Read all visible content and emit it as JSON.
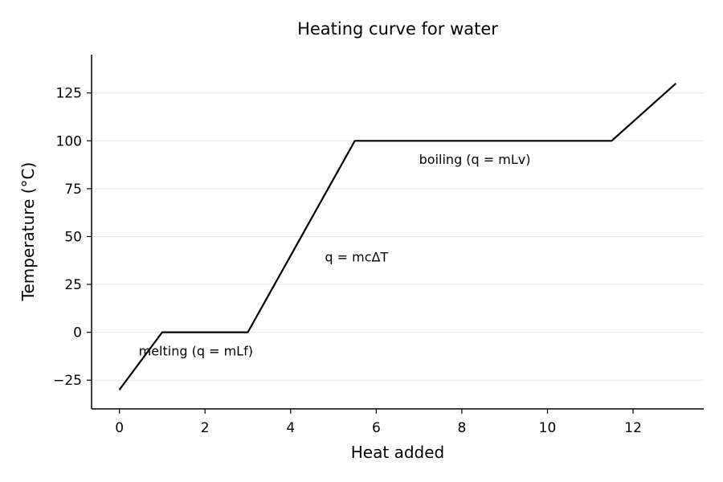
{
  "chart_data": {
    "type": "line",
    "title": "Heating curve for water",
    "xlabel": "Heat added",
    "ylabel": "Temperature (°C)",
    "xlim": [
      -0.65,
      13.65
    ],
    "ylim": [
      -40,
      145
    ],
    "xticks": [
      0,
      2,
      4,
      6,
      8,
      10,
      12
    ],
    "xtick_labels": [
      "0",
      "2",
      "4",
      "6",
      "8",
      "10",
      "12"
    ],
    "yticks": [
      -25,
      0,
      25,
      50,
      75,
      100,
      125
    ],
    "ytick_labels": [
      "−25",
      "0",
      "25",
      "50",
      "75",
      "100",
      "125"
    ],
    "grid": "horizontal",
    "line_color": "#000000",
    "series": [
      {
        "x": [
          0,
          1,
          3,
          5.5,
          11.5,
          13
        ],
        "y": [
          -30,
          0,
          0,
          100,
          100,
          130
        ]
      }
    ],
    "annotations": [
      {
        "text": "melting (q = mLf)",
        "x": 0.45,
        "y": -12
      },
      {
        "text": "q = mcΔT",
        "x": 4.8,
        "y": 37
      },
      {
        "text": "boiling (q = mLv)",
        "x": 7.0,
        "y": 88
      }
    ]
  }
}
